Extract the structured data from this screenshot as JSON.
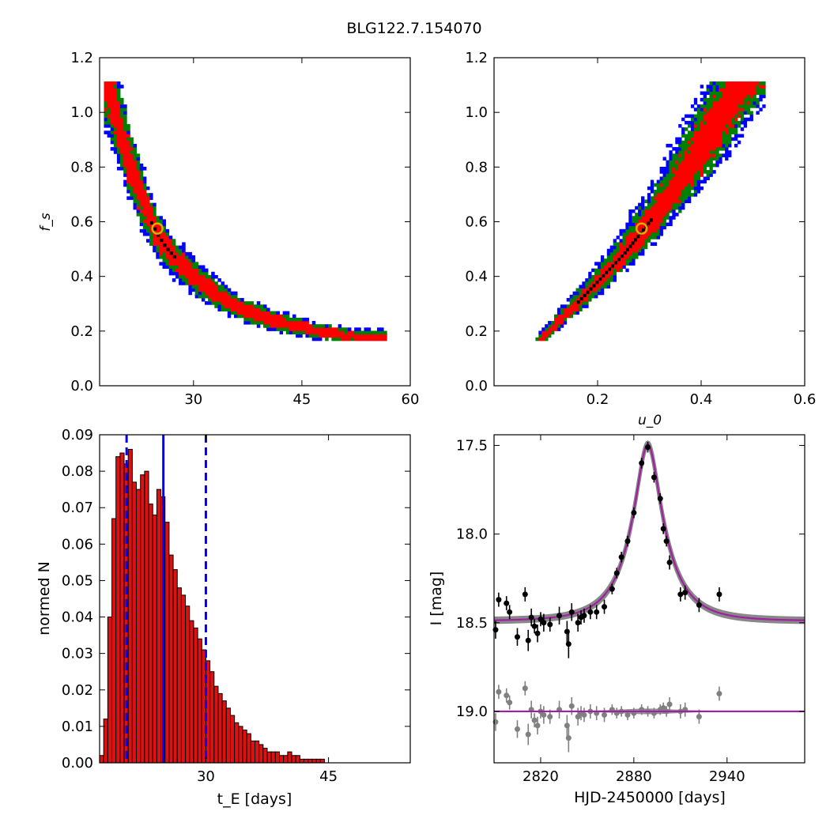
{
  "figure_title": "BLG122.7.154070",
  "colors": {
    "sigma1": "#ff0000",
    "sigma2": "#008000",
    "sigma3": "#0000ff",
    "best_cells": "#000000",
    "marker_ring": "#d4b000",
    "hist_bar": "#dd1111",
    "vline": "#0000ff",
    "model": "#a020a0",
    "data_points": "#000000",
    "residual_points": "#808080"
  },
  "chart_data": [
    {
      "id": "tE_vs_fs",
      "type": "heatmap",
      "title": "",
      "xlabel": "",
      "ylabel": "f_s",
      "xlim": [
        17,
        60
      ],
      "ylim": [
        0.0,
        1.2
      ],
      "xticks": [
        "30",
        "45",
        "60"
      ],
      "yticks": [
        "0.0",
        "0.2",
        "0.4",
        "0.6",
        "0.8",
        "1.0",
        "1.2"
      ],
      "contour_levels": [
        "1 sigma (red)",
        "2 sigma (green)",
        "3 sigma (blue)"
      ],
      "ridge": [
        {
          "tE": 18.0,
          "fs": 1.1
        },
        {
          "tE": 19.0,
          "fs": 1.0
        },
        {
          "tE": 20.0,
          "fs": 0.9
        },
        {
          "tE": 21.0,
          "fs": 0.81
        },
        {
          "tE": 22.0,
          "fs": 0.73
        },
        {
          "tE": 23.0,
          "fs": 0.66
        },
        {
          "tE": 24.0,
          "fs": 0.59
        },
        {
          "tE": 25.0,
          "fs": 0.54
        },
        {
          "tE": 26.0,
          "fs": 0.5
        },
        {
          "tE": 28.0,
          "fs": 0.44
        },
        {
          "tE": 30.0,
          "fs": 0.39
        },
        {
          "tE": 33.0,
          "fs": 0.33
        },
        {
          "tE": 36.0,
          "fs": 0.28
        },
        {
          "tE": 40.0,
          "fs": 0.24
        },
        {
          "tE": 45.0,
          "fs": 0.205
        },
        {
          "tE": 50.0,
          "fs": 0.18
        },
        {
          "tE": 55.0,
          "fs": 0.17
        }
      ],
      "best_fit": {
        "tE": 25.0,
        "fs": 0.575
      }
    },
    {
      "id": "u0_vs_fs",
      "type": "heatmap",
      "title": "",
      "xlabel": "u_0",
      "ylabel": "",
      "xlim": [
        0.0,
        0.6
      ],
      "ylim": [
        0.0,
        1.2
      ],
      "xticks": [
        "0.2",
        "0.4",
        "0.6"
      ],
      "yticks": [
        "0.0",
        "0.2",
        "0.4",
        "0.6",
        "0.8",
        "1.0",
        "1.2"
      ],
      "contour_levels": [
        "1 sigma (red)",
        "2 sigma (green)",
        "3 sigma (blue)"
      ],
      "ridge": [
        {
          "u0": 0.09,
          "fs": 0.17
        },
        {
          "u0": 0.15,
          "fs": 0.28
        },
        {
          "u0": 0.2,
          "fs": 0.38
        },
        {
          "u0": 0.25,
          "fs": 0.48
        },
        {
          "u0": 0.29,
          "fs": 0.575
        },
        {
          "u0": 0.33,
          "fs": 0.67
        },
        {
          "u0": 0.37,
          "fs": 0.78
        },
        {
          "u0": 0.41,
          "fs": 0.9
        },
        {
          "u0": 0.44,
          "fs": 1.0
        },
        {
          "u0": 0.48,
          "fs": 1.1
        }
      ],
      "best_fit": {
        "u0": 0.285,
        "fs": 0.575
      }
    },
    {
      "id": "tE_histogram",
      "type": "bar",
      "title": "",
      "xlabel": "t_E [days]",
      "ylabel": "normed N",
      "xlim": [
        17,
        55
      ],
      "ylim": [
        0.0,
        0.09
      ],
      "xticks": [
        "30",
        "45"
      ],
      "yticks": [
        "0.00",
        "0.01",
        "0.02",
        "0.03",
        "0.04",
        "0.05",
        "0.06",
        "0.07",
        "0.08",
        "0.09"
      ],
      "bin_start": 17.0,
      "bin_width": 0.5,
      "values": [
        0.002,
        0.012,
        0.04,
        0.067,
        0.084,
        0.085,
        0.082,
        0.086,
        0.077,
        0.075,
        0.079,
        0.08,
        0.071,
        0.068,
        0.075,
        0.073,
        0.066,
        0.057,
        0.053,
        0.048,
        0.046,
        0.043,
        0.039,
        0.037,
        0.034,
        0.031,
        0.028,
        0.025,
        0.021,
        0.019,
        0.017,
        0.015,
        0.013,
        0.011,
        0.01,
        0.009,
        0.008,
        0.006,
        0.006,
        0.005,
        0.004,
        0.003,
        0.003,
        0.003,
        0.002,
        0.002,
        0.003,
        0.002,
        0.002,
        0.001,
        0.001,
        0.001,
        0.001,
        0.001,
        0.001,
        0.0,
        0.0
      ],
      "vlines": [
        {
          "x": 20.3,
          "style": "dashed"
        },
        {
          "x": 24.8,
          "style": "solid"
        },
        {
          "x": 30.0,
          "style": "dashed"
        }
      ]
    },
    {
      "id": "light_curve",
      "type": "scatter",
      "title": "",
      "xlabel": "HJD-2450000 [days]",
      "ylabel": "I [mag]",
      "xlim": [
        2790,
        2990
      ],
      "ylim": [
        19.29,
        17.44
      ],
      "xticks": [
        "2820",
        "2880",
        "2940"
      ],
      "yticks": [
        "17.5",
        "18.0",
        "18.5",
        "19.0"
      ],
      "model": {
        "t0": 2889,
        "tE": 25,
        "u0": 0.285,
        "fs": 0.575,
        "I_base": 18.49
      },
      "data": [
        {
          "t": 2791,
          "I": 18.54,
          "err": 0.05
        },
        {
          "t": 2793,
          "I": 18.37,
          "err": 0.04
        },
        {
          "t": 2798,
          "I": 18.39,
          "err": 0.04
        },
        {
          "t": 2800,
          "I": 18.44,
          "err": 0.04
        },
        {
          "t": 2805,
          "I": 18.58,
          "err": 0.05
        },
        {
          "t": 2810,
          "I": 18.34,
          "err": 0.04
        },
        {
          "t": 2812,
          "I": 18.6,
          "err": 0.06
        },
        {
          "t": 2814,
          "I": 18.47,
          "err": 0.05
        },
        {
          "t": 2816,
          "I": 18.52,
          "err": 0.04
        },
        {
          "t": 2818,
          "I": 18.56,
          "err": 0.05
        },
        {
          "t": 2820,
          "I": 18.48,
          "err": 0.04
        },
        {
          "t": 2822,
          "I": 18.5,
          "err": 0.05
        },
        {
          "t": 2826,
          "I": 18.51,
          "err": 0.04
        },
        {
          "t": 2832,
          "I": 18.46,
          "err": 0.05
        },
        {
          "t": 2837,
          "I": 18.55,
          "err": 0.06
        },
        {
          "t": 2838,
          "I": 18.62,
          "err": 0.08
        },
        {
          "t": 2840,
          "I": 18.44,
          "err": 0.05
        },
        {
          "t": 2844,
          "I": 18.5,
          "err": 0.05
        },
        {
          "t": 2846,
          "I": 18.47,
          "err": 0.04
        },
        {
          "t": 2848,
          "I": 18.46,
          "err": 0.04
        },
        {
          "t": 2852,
          "I": 18.44,
          "err": 0.04
        },
        {
          "t": 2856,
          "I": 18.44,
          "err": 0.04
        },
        {
          "t": 2861,
          "I": 18.41,
          "err": 0.04
        },
        {
          "t": 2866,
          "I": 18.31,
          "err": 0.03
        },
        {
          "t": 2869,
          "I": 18.22,
          "err": 0.03
        },
        {
          "t": 2872,
          "I": 18.13,
          "err": 0.03
        },
        {
          "t": 2876,
          "I": 18.04,
          "err": 0.03
        },
        {
          "t": 2880,
          "I": 17.88,
          "err": 0.03
        },
        {
          "t": 2885,
          "I": 17.6,
          "err": 0.03
        },
        {
          "t": 2889,
          "I": 17.51,
          "err": 0.03
        },
        {
          "t": 2893,
          "I": 17.68,
          "err": 0.03
        },
        {
          "t": 2897,
          "I": 17.8,
          "err": 0.03
        },
        {
          "t": 2899,
          "I": 17.97,
          "err": 0.03
        },
        {
          "t": 2901,
          "I": 18.04,
          "err": 0.03
        },
        {
          "t": 2903,
          "I": 18.16,
          "err": 0.04
        },
        {
          "t": 2910,
          "I": 18.34,
          "err": 0.04
        },
        {
          "t": 2913,
          "I": 18.33,
          "err": 0.04
        },
        {
          "t": 2922,
          "I": 18.4,
          "err": 0.04
        },
        {
          "t": 2935,
          "I": 18.34,
          "err": 0.04
        }
      ],
      "residual_baseline": 19.0,
      "residuals": [
        {
          "t": 2791,
          "I": 19.06,
          "err": 0.05
        },
        {
          "t": 2793,
          "I": 18.89,
          "err": 0.04
        },
        {
          "t": 2798,
          "I": 18.91,
          "err": 0.04
        },
        {
          "t": 2800,
          "I": 18.95,
          "err": 0.04
        },
        {
          "t": 2805,
          "I": 19.1,
          "err": 0.05
        },
        {
          "t": 2810,
          "I": 18.87,
          "err": 0.04
        },
        {
          "t": 2812,
          "I": 19.13,
          "err": 0.06
        },
        {
          "t": 2814,
          "I": 18.99,
          "err": 0.05
        },
        {
          "t": 2816,
          "I": 19.05,
          "err": 0.04
        },
        {
          "t": 2818,
          "I": 19.08,
          "err": 0.05
        },
        {
          "t": 2820,
          "I": 19.0,
          "err": 0.04
        },
        {
          "t": 2822,
          "I": 19.02,
          "err": 0.05
        },
        {
          "t": 2826,
          "I": 19.03,
          "err": 0.04
        },
        {
          "t": 2832,
          "I": 18.99,
          "err": 0.05
        },
        {
          "t": 2837,
          "I": 19.08,
          "err": 0.06
        },
        {
          "t": 2838,
          "I": 19.15,
          "err": 0.08
        },
        {
          "t": 2840,
          "I": 18.97,
          "err": 0.05
        },
        {
          "t": 2844,
          "I": 19.03,
          "err": 0.05
        },
        {
          "t": 2846,
          "I": 19.01,
          "err": 0.04
        },
        {
          "t": 2848,
          "I": 19.02,
          "err": 0.04
        },
        {
          "t": 2852,
          "I": 19.0,
          "err": 0.04
        },
        {
          "t": 2856,
          "I": 19.01,
          "err": 0.04
        },
        {
          "t": 2861,
          "I": 19.02,
          "err": 0.04
        },
        {
          "t": 2866,
          "I": 18.99,
          "err": 0.03
        },
        {
          "t": 2869,
          "I": 19.01,
          "err": 0.03
        },
        {
          "t": 2872,
          "I": 19.0,
          "err": 0.03
        },
        {
          "t": 2876,
          "I": 19.02,
          "err": 0.03
        },
        {
          "t": 2880,
          "I": 19.01,
          "err": 0.03
        },
        {
          "t": 2885,
          "I": 18.99,
          "err": 0.03
        },
        {
          "t": 2889,
          "I": 19.0,
          "err": 0.03
        },
        {
          "t": 2893,
          "I": 19.01,
          "err": 0.03
        },
        {
          "t": 2897,
          "I": 18.99,
          "err": 0.03
        },
        {
          "t": 2899,
          "I": 18.98,
          "err": 0.03
        },
        {
          "t": 2901,
          "I": 19.0,
          "err": 0.03
        },
        {
          "t": 2903,
          "I": 18.96,
          "err": 0.04
        },
        {
          "t": 2910,
          "I": 19.0,
          "err": 0.04
        },
        {
          "t": 2913,
          "I": 18.99,
          "err": 0.04
        },
        {
          "t": 2922,
          "I": 19.03,
          "err": 0.04
        },
        {
          "t": 2935,
          "I": 18.9,
          "err": 0.04
        }
      ]
    }
  ]
}
